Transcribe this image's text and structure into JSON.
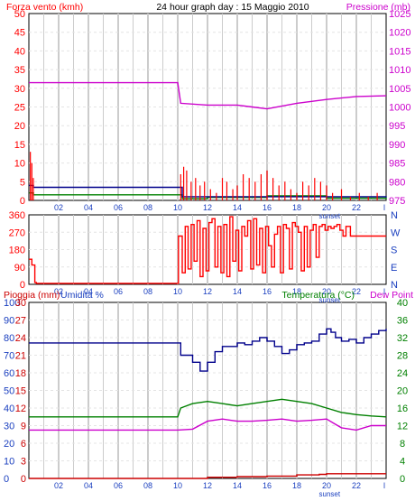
{
  "header": {
    "title": "24 hour graph day : 15 Maggio 2010",
    "left_label": "Forza vento (kmh)",
    "right_label": "Pressione (mb)"
  },
  "colors": {
    "wind": "#ff0000",
    "wind_gust": "#ff0000",
    "wind_avg": "#008000",
    "wind_dir_line": "#00008b",
    "pressure": "#cc00cc",
    "direction": "#ff0000",
    "rain": "#cc0000",
    "humidity": "#00008b",
    "temperature": "#008000",
    "dew_point": "#cc00cc",
    "grid": "#cccccc",
    "axis_blue": "#1a3fbf",
    "axis_green": "#008000"
  },
  "chart_data": [
    {
      "type": "line",
      "name_label": "wind_pressure",
      "x_ticks": [
        "02",
        "04",
        "06",
        "08",
        "10",
        "12",
        "14",
        "16",
        "18",
        "20",
        "22",
        "l"
      ],
      "sunset_label": "sunset",
      "y_left_ticks": [
        "0",
        "5",
        "10",
        "15",
        "20",
        "25",
        "30",
        "35",
        "40",
        "45",
        "50"
      ],
      "y_right_ticks": [
        "975",
        "980",
        "985",
        "990",
        "995",
        "1000",
        "1005",
        "1010",
        "1015",
        "1020",
        "1025"
      ],
      "ylim_left": [
        0,
        50
      ],
      "ylim_right": [
        975,
        1025
      ],
      "series": [
        {
          "key": "pressure",
          "axis": "right",
          "x": [
            0,
            10,
            10.2,
            12,
            14,
            15,
            16,
            18,
            20,
            22,
            24
          ],
          "values": [
            1006.5,
            1006.5,
            1001,
            1000.5,
            1000.5,
            1000,
            999.5,
            1001,
            1002,
            1002.8,
            1003
          ]
        },
        {
          "key": "wind_avg",
          "axis": "left",
          "x": [
            0,
            0.3,
            10,
            10.3,
            12,
            16,
            20,
            24
          ],
          "values": [
            2,
            1.5,
            1.5,
            0.5,
            0.8,
            1.2,
            0.6,
            0.3
          ]
        },
        {
          "key": "wind_dir_line",
          "axis": "left",
          "x": [
            0,
            0.3,
            10,
            10.3,
            24
          ],
          "values": [
            4,
            3.5,
            3.5,
            1,
            0.8
          ]
        }
      ],
      "wind_gust_spikes": {
        "x": [
          0.1,
          0.2,
          0.3,
          10.2,
          10.4,
          10.6,
          10.9,
          11.2,
          11.5,
          11.8,
          12.2,
          12.6,
          13,
          13.3,
          13.7,
          14,
          14.4,
          14.8,
          15.2,
          15.6,
          16,
          16.4,
          16.8,
          17.2,
          17.6,
          18,
          18.4,
          18.8,
          19.2,
          19.6,
          20,
          20.4,
          21,
          21.6,
          22.2,
          22.8,
          23.4
        ],
        "values": [
          13,
          10,
          6,
          7,
          9,
          8,
          5,
          6,
          4,
          5,
          3,
          2,
          6,
          5,
          3,
          4,
          7,
          6,
          5,
          7,
          8,
          6,
          4,
          5,
          3,
          2,
          5,
          4,
          6,
          5,
          4,
          2,
          3,
          1,
          2,
          1,
          2
        ]
      }
    },
    {
      "type": "line",
      "name_label": "wind_direction",
      "y_left_ticks": [
        "0",
        "90",
        "180",
        "270",
        "360"
      ],
      "y_right_ticks": [
        "N",
        "E",
        "S",
        "W",
        "N"
      ],
      "ylim_left": [
        0,
        360
      ],
      "x_ticks": [
        "02",
        "04",
        "06",
        "08",
        "10",
        "12",
        "14",
        "16",
        "18",
        "20",
        "22",
        "l"
      ],
      "sunset_label": "sunset",
      "series": [
        {
          "key": "direction",
          "axis": "left",
          "x": [
            0,
            0.2,
            0.4,
            0.5,
            10,
            10.05,
            10.3,
            10.5,
            10.7,
            10.9,
            11.1,
            11.3,
            11.5,
            11.7,
            11.9,
            12.1,
            12.3,
            12.5,
            12.7,
            12.9,
            13.1,
            13.3,
            13.5,
            13.7,
            13.9,
            14.1,
            14.3,
            14.5,
            14.7,
            14.9,
            15.1,
            15.3,
            15.5,
            15.7,
            15.9,
            16.1,
            16.3,
            16.5,
            16.7,
            16.9,
            17.1,
            17.3,
            17.5,
            17.7,
            17.9,
            18.1,
            18.3,
            18.5,
            18.7,
            18.9,
            19.1,
            19.3,
            19.5,
            19.7,
            19.9,
            20.1,
            20.3,
            20.5,
            20.7,
            20.9,
            21.1,
            21.3,
            21.6,
            22,
            22.5,
            23,
            23.5,
            24
          ],
          "values": [
            130,
            100,
            10,
            5,
            5,
            250,
            60,
            300,
            80,
            310,
            120,
            330,
            40,
            290,
            70,
            320,
            340,
            90,
            300,
            60,
            310,
            40,
            350,
            120,
            280,
            70,
            300,
            250,
            330,
            80,
            340,
            100,
            290,
            60,
            300,
            200,
            90,
            260,
            300,
            60,
            310,
            290,
            80,
            320,
            300,
            270,
            70,
            300,
            90,
            280,
            310,
            140,
            300,
            310,
            280,
            300,
            290,
            300,
            310,
            280,
            250,
            300,
            250,
            250,
            250,
            250,
            250,
            250
          ]
        }
      ]
    },
    {
      "type": "line",
      "name_label": "rain_humidity_temp",
      "left_label_rain": "Pioggia (mm)",
      "left_label_humidity": "Umidita %",
      "right_label_temp": "Temperatura (°C)",
      "right_label_dew": "Dew Point",
      "y_rain_ticks": [
        "0",
        "3",
        "6",
        "9",
        "12",
        "15",
        "18",
        "21",
        "24",
        "27",
        "30"
      ],
      "y_humidity_ticks": [
        "0",
        "10",
        "20",
        "30",
        "40",
        "50",
        "60",
        "70",
        "80",
        "90",
        "100"
      ],
      "y_temp_ticks": [
        "0",
        "4",
        "8",
        "12",
        "16",
        "20",
        "24",
        "28",
        "32",
        "36",
        "40"
      ],
      "x_ticks": [
        "02",
        "04",
        "06",
        "08",
        "10",
        "12",
        "14",
        "16",
        "18",
        "20",
        "22",
        "l"
      ],
      "sunset_label": "sunset",
      "ylim_temp": [
        0,
        40
      ],
      "series": [
        {
          "key": "humidity",
          "axis": "humidity",
          "x": [
            0,
            10,
            10.2,
            11,
            11.5,
            12,
            12.5,
            13,
            14,
            14.5,
            15,
            15.5,
            16,
            16.5,
            17,
            17.5,
            18,
            18.5,
            19,
            19.5,
            20,
            20.3,
            20.6,
            21,
            21.5,
            22,
            22.5,
            23,
            23.5,
            24
          ],
          "values": [
            77,
            77,
            70,
            66,
            61,
            66,
            72,
            75,
            77,
            76,
            78,
            80,
            78,
            75,
            71,
            73,
            76,
            77,
            78,
            82,
            85,
            83,
            80,
            78,
            79,
            77,
            80,
            82,
            84,
            85
          ]
        },
        {
          "key": "temperature",
          "axis": "temp",
          "x": [
            0,
            10,
            10.2,
            11,
            12,
            13,
            14,
            15,
            16,
            17,
            18,
            19,
            20,
            21,
            22,
            23,
            24
          ],
          "values": [
            14,
            14,
            16,
            17,
            17.5,
            17,
            16.5,
            17,
            17.5,
            18,
            17.5,
            17,
            16,
            15,
            14.5,
            14.2,
            14
          ]
        },
        {
          "key": "dew_point",
          "axis": "temp",
          "x": [
            0,
            10,
            11,
            12,
            13,
            14,
            15,
            16,
            17,
            18,
            19,
            20,
            20.5,
            21,
            22,
            23,
            24
          ],
          "values": [
            11,
            11,
            11.2,
            13,
            13.5,
            13,
            13,
            13.2,
            13.5,
            13,
            13.2,
            13.5,
            12.5,
            11.5,
            11,
            12,
            12
          ]
        },
        {
          "key": "rain",
          "axis": "rain",
          "x": [
            0,
            10,
            12,
            14,
            16,
            18,
            19.5,
            20,
            24
          ],
          "values": [
            0,
            0,
            0.2,
            0.3,
            0.4,
            0.6,
            0.7,
            0.8,
            0.8
          ]
        }
      ]
    }
  ]
}
